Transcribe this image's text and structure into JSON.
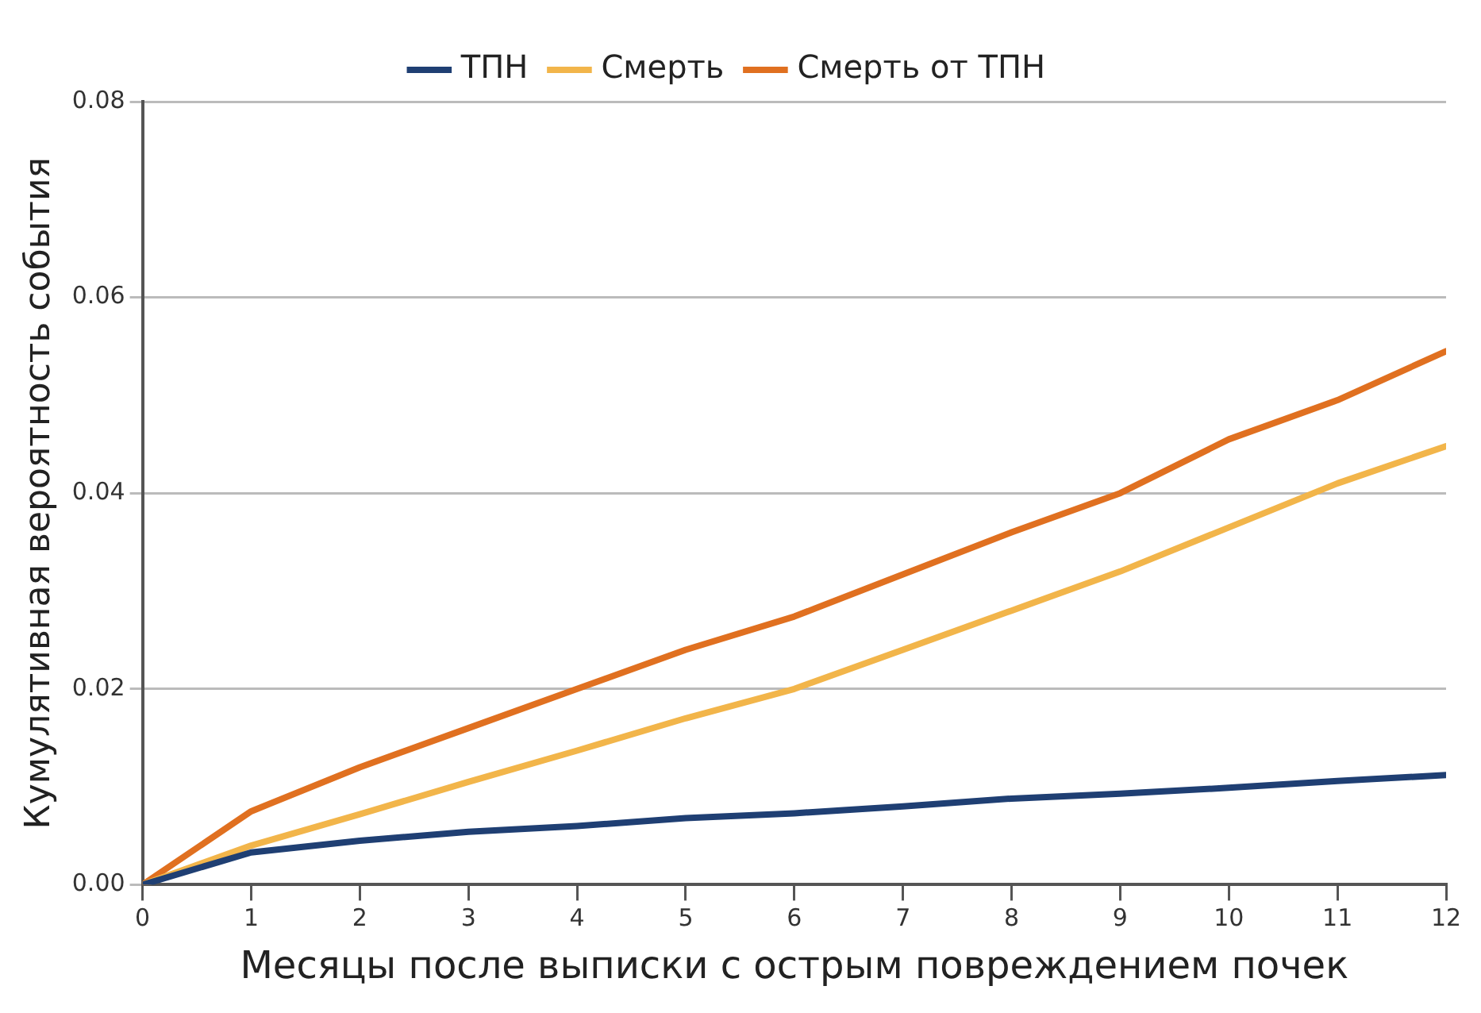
{
  "chart_data": {
    "type": "line",
    "xlabel": "Месяцы после выписки с острым повреждением почек",
    "ylabel": "Кумулятивная вероятность события",
    "x": [
      0,
      1,
      2,
      3,
      4,
      5,
      6,
      7,
      8,
      9,
      10,
      11,
      12
    ],
    "series": [
      {
        "name": "ТПН",
        "color": "#1f3f73",
        "values": [
          0,
          0.0033,
          0.0045,
          0.0054,
          0.006,
          0.0068,
          0.0073,
          0.008,
          0.0088,
          0.0093,
          0.0099,
          0.0106,
          0.0112
        ]
      },
      {
        "name": "Смерть",
        "color": "#f2b54a",
        "values": [
          0,
          0.004,
          0.0072,
          0.0105,
          0.0137,
          0.017,
          0.02,
          0.024,
          0.028,
          0.032,
          0.0365,
          0.041,
          0.0448
        ]
      },
      {
        "name": "Смерть от ТПН",
        "color": "#e07020",
        "values": [
          0,
          0.0075,
          0.012,
          0.016,
          0.02,
          0.024,
          0.0274,
          0.0317,
          0.036,
          0.04,
          0.0455,
          0.0495,
          0.0545
        ]
      }
    ],
    "xlim": [
      0,
      12
    ],
    "xticks": [
      0,
      1,
      2,
      3,
      4,
      5,
      6,
      7,
      8,
      9,
      10,
      11,
      12
    ],
    "ylim": [
      0,
      0.08
    ],
    "yticks": [
      {
        "value": 0,
        "label": "0.00"
      },
      {
        "value": 0.02,
        "label": "0.02"
      },
      {
        "value": 0.04,
        "label": "0.04"
      },
      {
        "value": 0.06,
        "label": "0.06"
      },
      {
        "value": 0.08,
        "label": "0.08"
      }
    ],
    "grid": "y",
    "legend": "top",
    "marker": "none",
    "line_style": "solid"
  }
}
